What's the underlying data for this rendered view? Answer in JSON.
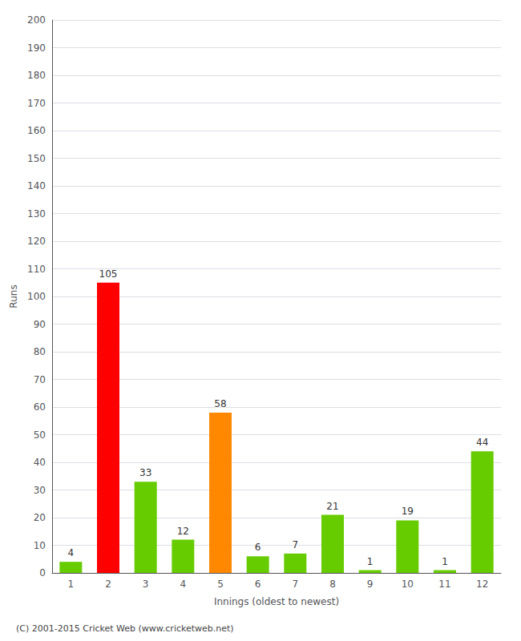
{
  "chart_data": {
    "type": "bar",
    "categories": [
      "1",
      "2",
      "3",
      "4",
      "5",
      "6",
      "7",
      "8",
      "9",
      "10",
      "11",
      "12"
    ],
    "values": [
      4,
      105,
      33,
      12,
      58,
      6,
      7,
      21,
      1,
      19,
      1,
      44
    ],
    "colors": [
      "#66cc00",
      "#ff0000",
      "#66cc00",
      "#66cc00",
      "#ff8800",
      "#66cc00",
      "#66cc00",
      "#66cc00",
      "#66cc00",
      "#66cc00",
      "#66cc00",
      "#66cc00"
    ],
    "xlabel": "Innings (oldest to newest)",
    "ylabel": "Runs",
    "ylim": [
      0,
      200
    ],
    "yticks": [
      0,
      10,
      20,
      30,
      40,
      50,
      60,
      70,
      80,
      90,
      100,
      110,
      120,
      130,
      140,
      150,
      160,
      170,
      180,
      190,
      200
    ],
    "grid": true,
    "data_labels": true,
    "footer": "(C) 2001-2015 Cricket Web (www.cricketweb.net)"
  }
}
